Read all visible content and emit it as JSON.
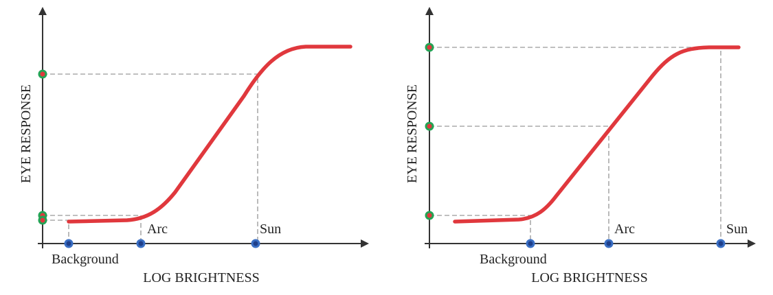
{
  "panels": [
    {
      "y_label": "EYE RESPONSE",
      "x_label": "LOG BRIGHTNESS",
      "points": [
        "Background",
        "Arc",
        "Sun"
      ]
    },
    {
      "y_label": "EYE RESPONSE",
      "x_label": "LOG BRIGHTNESS",
      "points": [
        "Background",
        "Arc",
        "Sun"
      ]
    }
  ]
}
